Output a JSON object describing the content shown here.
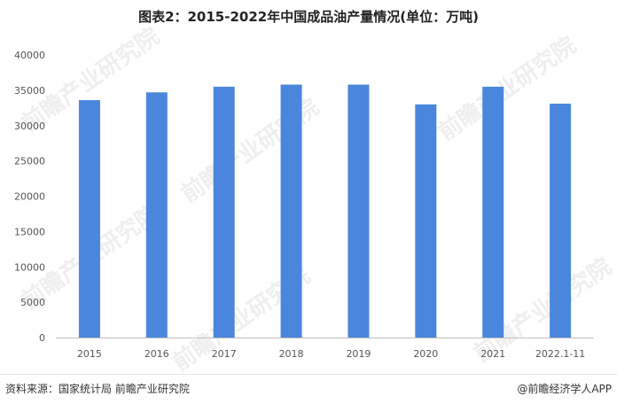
{
  "title": "图表2：2015-2022年中国成品油产量情况(单位：万吨)",
  "source": "资料来源：国家统计局 前瞻产业研究院",
  "credit": "@前瞻经济学人APP",
  "watermark": "前瞻产业研究院",
  "colors": {
    "bar": "#4a86dc",
    "axis": "#bfbfbf",
    "background": "#ffffff"
  },
  "chart_data": {
    "type": "bar",
    "categories": [
      "2015",
      "2016",
      "2017",
      "2018",
      "2019",
      "2020",
      "2021",
      "2022.1-11"
    ],
    "series": [
      {
        "values": [
          33600,
          34700,
          35500,
          35800,
          35800,
          33000,
          35500,
          33100
        ]
      }
    ],
    "title": "图表2：2015-2022年中国成品油产量情况(单位：万吨)",
    "xlabel": "",
    "ylabel": "",
    "ylim": [
      0,
      40000
    ],
    "yticks": [
      0,
      5000,
      10000,
      15000,
      20000,
      25000,
      30000,
      35000,
      40000
    ],
    "grid": false,
    "legend": "none"
  }
}
